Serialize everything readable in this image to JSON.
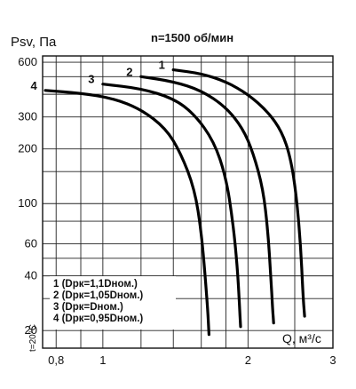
{
  "chart_data": {
    "type": "line",
    "title": "n=1500 об/мин",
    "ylabel": "Psv, Па",
    "xlabel": "Q, м³/с",
    "side_note": "t=20°C",
    "x_scale": "log",
    "y_scale": "log",
    "xlim": [
      0.75,
      3
    ],
    "ylim": [
      16,
      650
    ],
    "x_ticks": [
      {
        "value": 0.8,
        "label": "0,8"
      },
      {
        "value": 1,
        "label": "1"
      },
      {
        "value": 2,
        "label": "2"
      },
      {
        "value": 3,
        "label": "3"
      }
    ],
    "y_ticks": [
      {
        "value": 20,
        "label": "20"
      },
      {
        "value": 40,
        "label": "40"
      },
      {
        "value": 60,
        "label": "60"
      },
      {
        "value": 100,
        "label": "100"
      },
      {
        "value": 200,
        "label": "200"
      },
      {
        "value": 300,
        "label": "300"
      },
      {
        "value": 600,
        "label": "600"
      }
    ],
    "legend": {
      "placement": "bottom-left",
      "entries": [
        "1 (Dрк=1,1Dном.)",
        "2 (Dрк=1,05Dном.)",
        "3 (Dрк=Dном.)",
        "4 (Dрк=0,95Dном.)"
      ]
    },
    "series": [
      {
        "name": "1",
        "points": [
          [
            1.4,
            545
          ],
          [
            1.6,
            520
          ],
          [
            1.8,
            470
          ],
          [
            2.0,
            400
          ],
          [
            2.2,
            320
          ],
          [
            2.35,
            250
          ],
          [
            2.45,
            180
          ],
          [
            2.52,
            110
          ],
          [
            2.57,
            60
          ],
          [
            2.6,
            32
          ],
          [
            2.62,
            24
          ]
        ]
      },
      {
        "name": "2",
        "points": [
          [
            1.2,
            500
          ],
          [
            1.4,
            470
          ],
          [
            1.6,
            420
          ],
          [
            1.8,
            340
          ],
          [
            1.95,
            260
          ],
          [
            2.05,
            190
          ],
          [
            2.15,
            120
          ],
          [
            2.2,
            70
          ],
          [
            2.23,
            40
          ],
          [
            2.25,
            26
          ],
          [
            2.26,
            22
          ]
        ]
      },
      {
        "name": "3",
        "points": [
          [
            1.0,
            455
          ],
          [
            1.2,
            430
          ],
          [
            1.4,
            380
          ],
          [
            1.55,
            310
          ],
          [
            1.7,
            220
          ],
          [
            1.8,
            140
          ],
          [
            1.86,
            80
          ],
          [
            1.9,
            45
          ],
          [
            1.92,
            28
          ],
          [
            1.93,
            21
          ]
        ]
      },
      {
        "name": "4",
        "points": [
          [
            0.76,
            420
          ],
          [
            0.9,
            405
          ],
          [
            1.05,
            380
          ],
          [
            1.2,
            330
          ],
          [
            1.35,
            260
          ],
          [
            1.45,
            190
          ],
          [
            1.55,
            120
          ],
          [
            1.6,
            70
          ],
          [
            1.63,
            40
          ],
          [
            1.65,
            26
          ],
          [
            1.66,
            19
          ]
        ]
      }
    ]
  }
}
